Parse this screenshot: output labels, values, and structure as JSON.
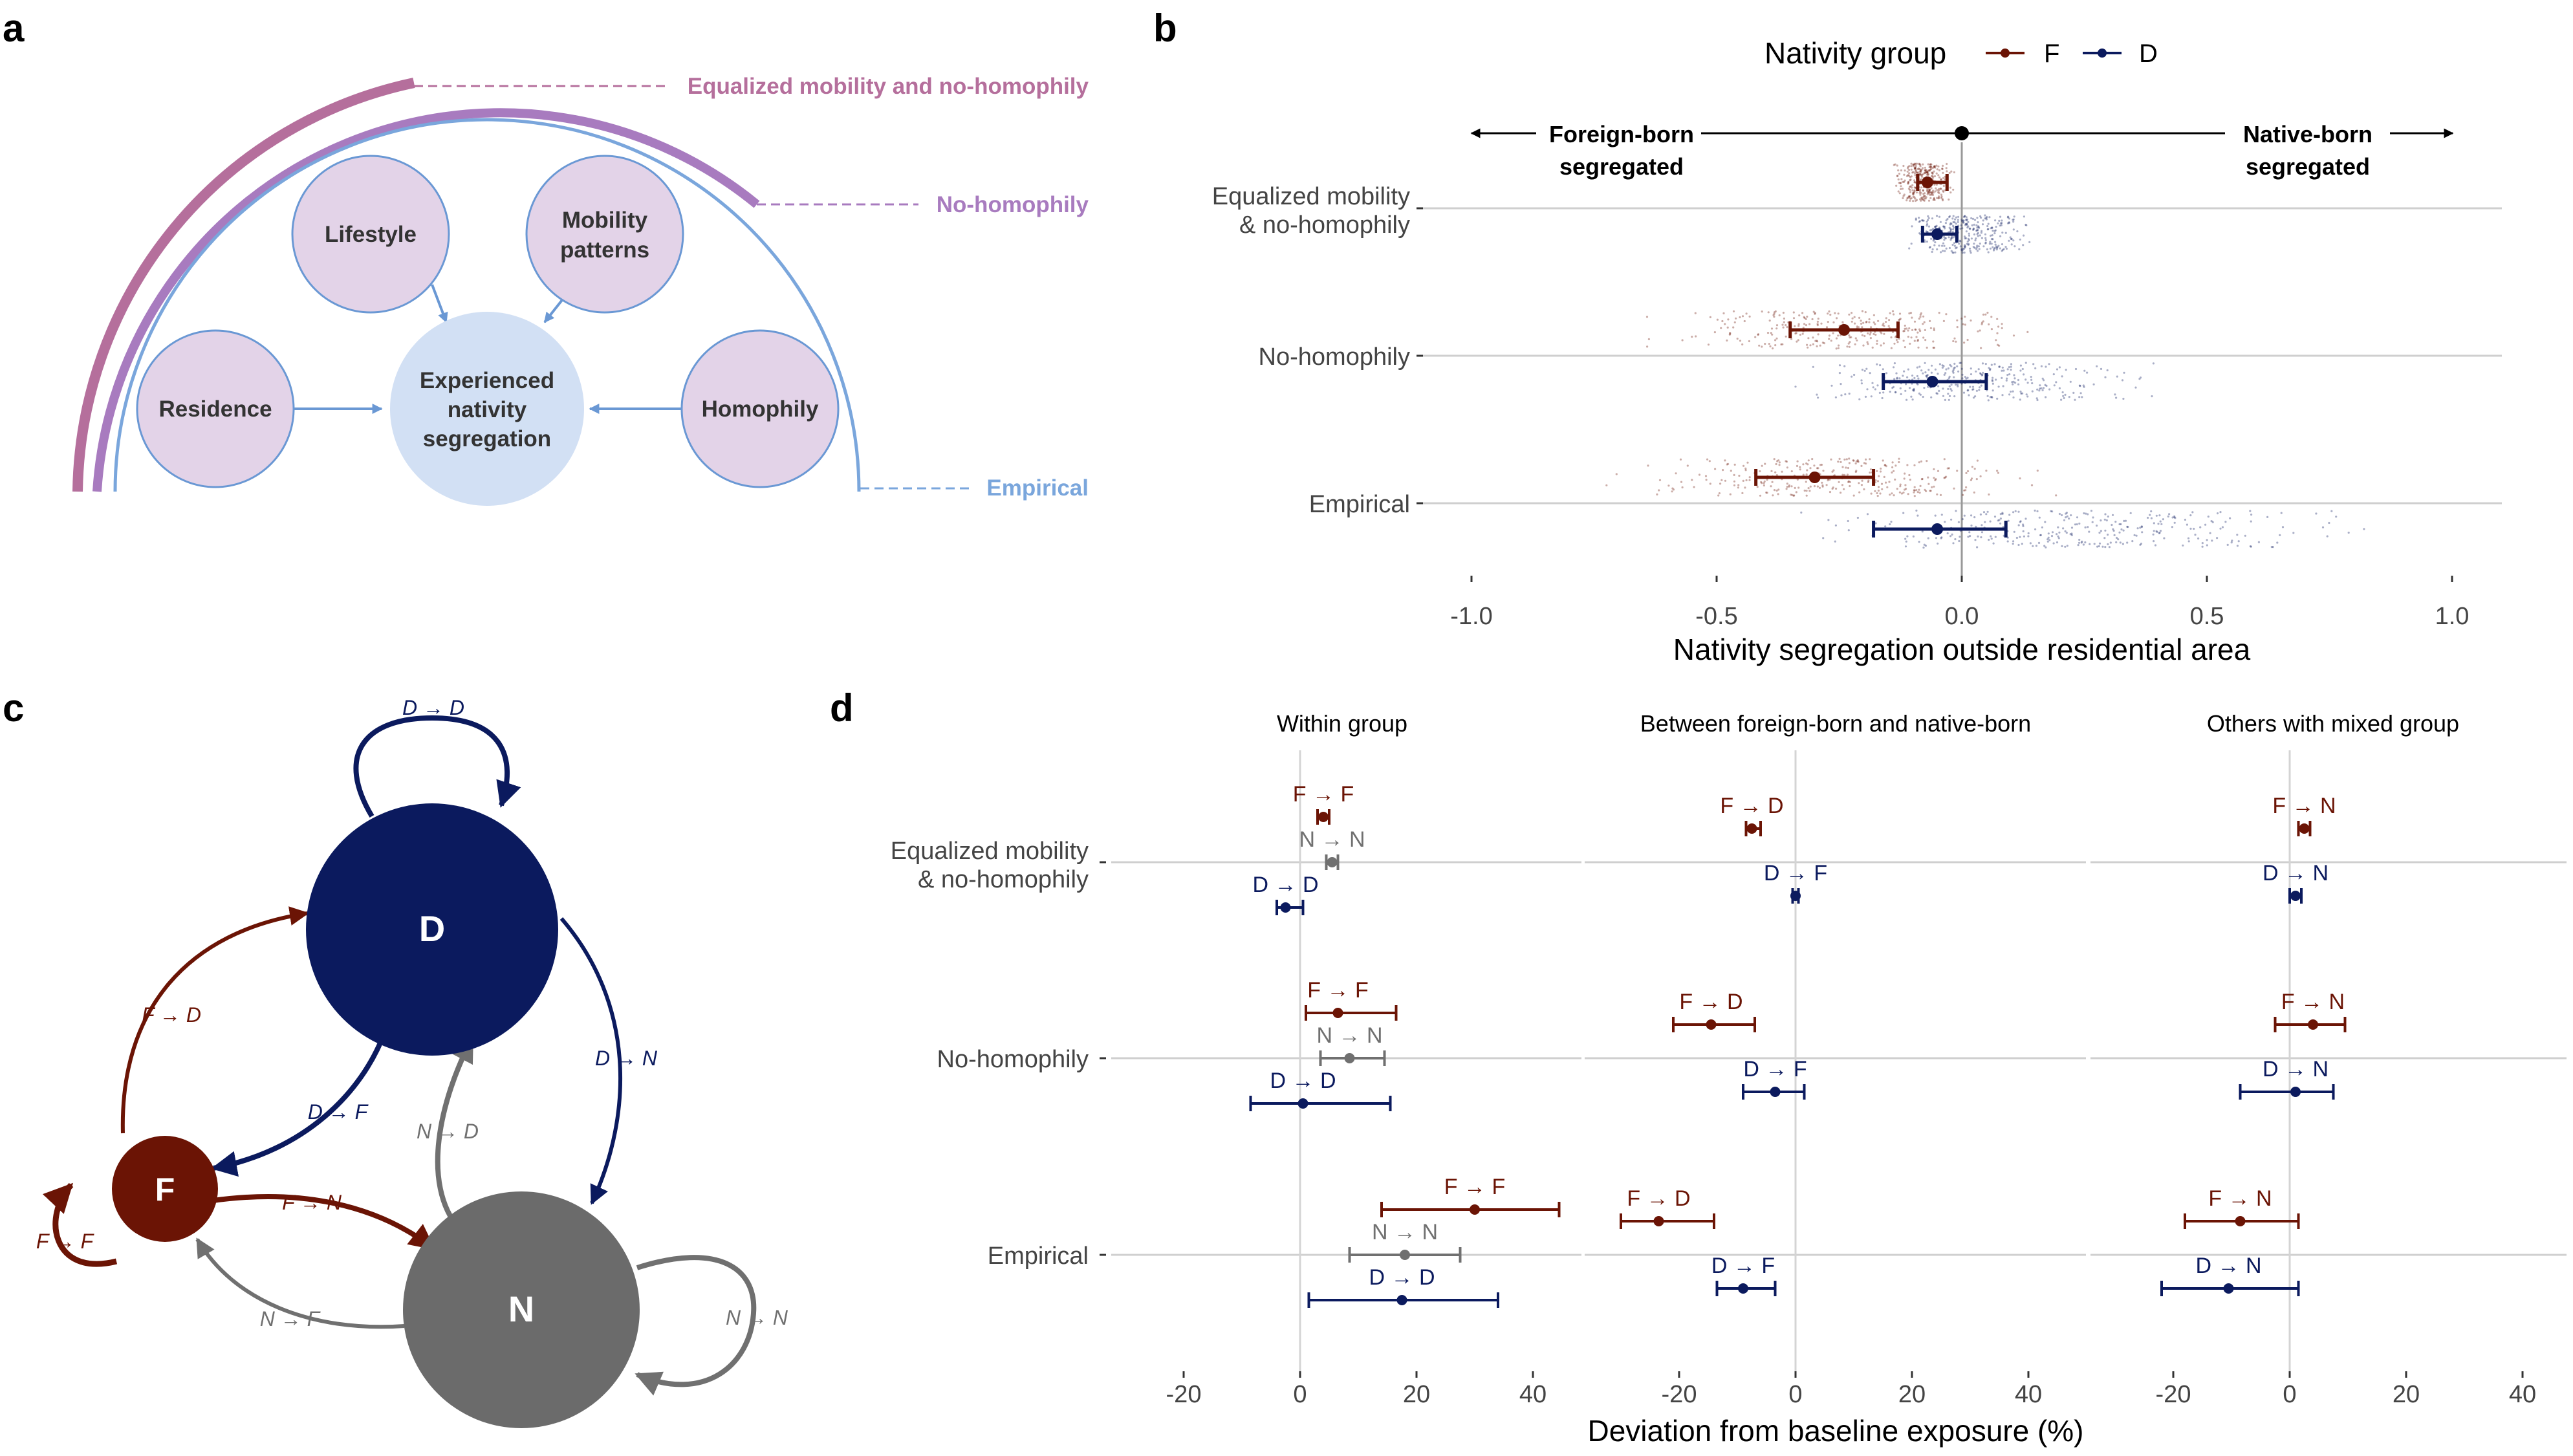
{
  "panel_labels": {
    "a": "a",
    "b": "b",
    "c": "c",
    "d": "d"
  },
  "colors": {
    "F": "#6b1405",
    "D": "#0b1a5e",
    "N": "#707070",
    "ring_equalized": "#b56f9c",
    "ring_nohomophily": "#a87bbf",
    "ring_empirical": "#7aa6dc",
    "circle_fill": "#e3d3e8",
    "circle_stroke": "#6a98d4",
    "center_fill": "#d2e0f4"
  },
  "panel_a": {
    "factors": {
      "lifestyle": "Lifestyle",
      "mobility_line1": "Mobility",
      "mobility_line2": "patterns",
      "residence": "Residence",
      "homophily": "Homophily"
    },
    "center": {
      "line1": "Experienced",
      "line2": "nativity",
      "line3": "segregation"
    },
    "scenarios": {
      "equalized": "Equalized mobility and no-homophily",
      "nohomophily": "No-homophily",
      "empirical": "Empirical"
    }
  },
  "panel_b": {
    "legend_title": "Nativity group",
    "legend_F": "F",
    "legend_D": "D",
    "arrow_left_line1": "Foreign-born",
    "arrow_left_line2": "segregated",
    "arrow_right_line1": "Native-born",
    "arrow_right_line2": "segregated",
    "xlabel": "Nativity segregation outside residential area",
    "cat_equalized_line1": "Equalized mobility",
    "cat_equalized_line2": "& no-homophily",
    "cat_nohomophily": "No-homophily",
    "cat_empirical": "Empirical"
  },
  "panel_c": {
    "nodes": {
      "D": "D",
      "F": "F",
      "N": "N"
    },
    "edges": {
      "DD": "D → D",
      "FD": "F → D",
      "DF": "D → F",
      "DN": "D → N",
      "ND": "N → D",
      "FF": "F → F",
      "FN": "F → N",
      "NF": "N → F",
      "NN": "N → N"
    }
  },
  "panel_d": {
    "facet_within": "Within group",
    "facet_between": "Between foreign-born and native-born",
    "facet_others": "Others with mixed group",
    "xlabel": "Deviation from baseline exposure (%)",
    "cat_equalized_line1": "Equalized mobility",
    "cat_equalized_line2": "& no-homophily",
    "cat_nohomophily": "No-homophily",
    "cat_empirical": "Empirical"
  },
  "chart_data": [
    {
      "type": "scatter",
      "panel": "b",
      "title": "",
      "xlabel": "Nativity segregation outside residential area",
      "ylabel": "",
      "xlim": [
        -1.05,
        1.1
      ],
      "xticks": [
        -1.0,
        -0.5,
        0.0,
        0.5,
        1.0
      ],
      "xtick_labels": [
        "-1.0",
        "-0.5",
        "0.0",
        "0.5",
        "1.0"
      ],
      "categories": [
        "Equalized mobility & no-homophily",
        "No-homophily",
        "Empirical"
      ],
      "legend": {
        "title": "Nativity group",
        "position": "top"
      },
      "grid": true,
      "series": [
        {
          "name": "F",
          "color": "#6b1405",
          "points": [
            {
              "category": "Equalized mobility & no-homophily",
              "mean": -0.07,
              "low": -0.09,
              "high": -0.03,
              "spread": [
                -0.15,
                0.0
              ]
            },
            {
              "category": "No-homophily",
              "mean": -0.24,
              "low": -0.35,
              "high": -0.13,
              "spread": [
                -0.7,
                0.25
              ]
            },
            {
              "category": "Empirical",
              "mean": -0.3,
              "low": -0.42,
              "high": -0.18,
              "spread": [
                -0.75,
                0.25
              ]
            }
          ]
        },
        {
          "name": "D",
          "color": "#0b1a5e",
          "points": [
            {
              "category": "Equalized mobility & no-homophily",
              "mean": -0.05,
              "low": -0.08,
              "high": -0.01,
              "spread": [
                -0.15,
                0.18
              ]
            },
            {
              "category": "No-homophily",
              "mean": -0.06,
              "low": -0.16,
              "high": 0.05,
              "spread": [
                -0.4,
                0.45
              ]
            },
            {
              "category": "Empirical",
              "mean": -0.05,
              "low": -0.18,
              "high": 0.09,
              "spread": [
                -0.45,
                0.9
              ]
            }
          ]
        }
      ]
    },
    {
      "type": "scatter",
      "panel": "d",
      "title": "",
      "xlabel": "Deviation from baseline exposure (%)",
      "xlim": [
        -25,
        42
      ],
      "xticks": [
        -20,
        0,
        20,
        40
      ],
      "xtick_labels": [
        "-20",
        "0",
        "20",
        "40"
      ],
      "categories": [
        "Equalized mobility & no-homophily",
        "No-homophily",
        "Empirical"
      ],
      "grid": true,
      "facets": [
        {
          "title": "Within group",
          "points": [
            {
              "label": "F → F",
              "group": "F",
              "category": "Equalized mobility & no-homophily",
              "mean": 4,
              "low": 3,
              "high": 5
            },
            {
              "label": "N → N",
              "group": "N",
              "category": "Equalized mobility & no-homophily",
              "mean": 5.5,
              "low": 4.5,
              "high": 6.5
            },
            {
              "label": "D → D",
              "group": "D",
              "category": "Equalized mobility & no-homophily",
              "mean": -2.5,
              "low": -4,
              "high": 0.5
            },
            {
              "label": "F → F",
              "group": "F",
              "category": "No-homophily",
              "mean": 6.5,
              "low": 1,
              "high": 16.5
            },
            {
              "label": "N → N",
              "group": "N",
              "category": "No-homophily",
              "mean": 8.5,
              "low": 3.5,
              "high": 14.5
            },
            {
              "label": "D → D",
              "group": "D",
              "category": "No-homophily",
              "mean": 0.5,
              "low": -8.5,
              "high": 15.5
            },
            {
              "label": "F → F",
              "group": "F",
              "category": "Empirical",
              "mean": 30,
              "low": 14,
              "high": 44.5
            },
            {
              "label": "N → N",
              "group": "N",
              "category": "Empirical",
              "mean": 18,
              "low": 8.5,
              "high": 27.5
            },
            {
              "label": "D → D",
              "group": "D",
              "category": "Empirical",
              "mean": 17.5,
              "low": 1.5,
              "high": 34
            }
          ]
        },
        {
          "title": "Between foreign-born and native-born",
          "points": [
            {
              "label": "F → D",
              "group": "F",
              "category": "Equalized mobility & no-homophily",
              "mean": -7.5,
              "low": -8.5,
              "high": -6
            },
            {
              "label": "D → F",
              "group": "D",
              "category": "Equalized mobility & no-homophily",
              "mean": 0,
              "low": -0.5,
              "high": 0.5
            },
            {
              "label": "F → D",
              "group": "F",
              "category": "No-homophily",
              "mean": -14.5,
              "low": -21,
              "high": -7
            },
            {
              "label": "D → F",
              "group": "D",
              "category": "No-homophily",
              "mean": -3.5,
              "low": -9,
              "high": 1.5
            },
            {
              "label": "F → D",
              "group": "F",
              "category": "Empirical",
              "mean": -23.5,
              "low": -30,
              "high": -14
            },
            {
              "label": "D → F",
              "group": "D",
              "category": "Empirical",
              "mean": -9,
              "low": -13.5,
              "high": -3.5
            }
          ]
        },
        {
          "title": "Others with mixed group",
          "points": [
            {
              "label": "F → N",
              "group": "F",
              "category": "Equalized mobility & no-homophily",
              "mean": 2.5,
              "low": 1.5,
              "high": 3.5
            },
            {
              "label": "D → N",
              "group": "D",
              "category": "Equalized mobility & no-homophily",
              "mean": 1,
              "low": 0,
              "high": 2
            },
            {
              "label": "F → N",
              "group": "F",
              "category": "No-homophily",
              "mean": 4,
              "low": -2.5,
              "high": 9.5
            },
            {
              "label": "D → N",
              "group": "D",
              "category": "No-homophily",
              "mean": 1,
              "low": -8.5,
              "high": 7.5
            },
            {
              "label": "F → N",
              "group": "F",
              "category": "Empirical",
              "mean": -8.5,
              "low": -18,
              "high": 1.5
            },
            {
              "label": "D → N",
              "group": "D",
              "category": "Empirical",
              "mean": -10.5,
              "low": -22,
              "high": 1.5
            }
          ]
        }
      ]
    }
  ]
}
